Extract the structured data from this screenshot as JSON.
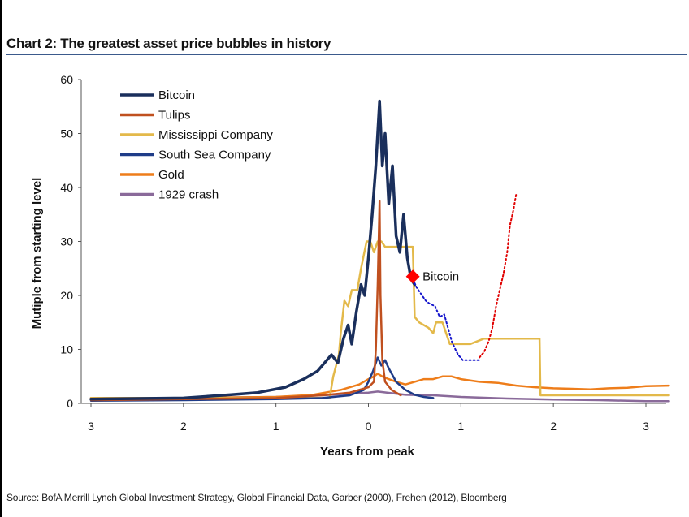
{
  "title": "Chart 2: The greatest asset price bubbles in history",
  "source": "Source:  BofA Merrill Lynch Global Investment Strategy, Global Financial Data, Garber (2000), Frehen (2012),  Bloomberg",
  "chart_data": {
    "type": "line",
    "title": "Chart 2: The greatest asset price bubbles in history",
    "xlabel": "Years from peak",
    "ylabel": "Mutiple from starting level",
    "xlim": [
      -3.0,
      3.25
    ],
    "ylim": [
      0,
      60
    ],
    "x_ticks": [
      -3,
      -2,
      -1,
      0,
      1,
      2,
      3
    ],
    "x_tick_labels": [
      "3",
      "2",
      "1",
      "0",
      "1",
      "2",
      "3"
    ],
    "y_ticks": [
      0,
      10,
      20,
      30,
      40,
      50,
      60
    ],
    "y_tick_labels": [
      "0",
      "10",
      "20",
      "30",
      "40",
      "50",
      "60"
    ],
    "annotation": {
      "text": "Bitcoin",
      "x": 0.48,
      "y": 23.5,
      "color": "#ff0000"
    },
    "series": [
      {
        "name": "Bitcoin",
        "color": "#1a2f5c",
        "width": 3.5,
        "points": [
          [
            -3.0,
            0.8
          ],
          [
            -2.5,
            0.9
          ],
          [
            -2.0,
            1.0
          ],
          [
            -1.5,
            1.6
          ],
          [
            -1.2,
            2.0
          ],
          [
            -0.9,
            3.0
          ],
          [
            -0.7,
            4.5
          ],
          [
            -0.55,
            6.0
          ],
          [
            -0.4,
            9.0
          ],
          [
            -0.33,
            7.5
          ],
          [
            -0.27,
            12.0
          ],
          [
            -0.22,
            14.5
          ],
          [
            -0.18,
            11.0
          ],
          [
            -0.13,
            17.0
          ],
          [
            -0.08,
            22.0
          ],
          [
            -0.04,
            20.0
          ],
          [
            0.0,
            27.0
          ],
          [
            0.04,
            35.0
          ],
          [
            0.08,
            44.0
          ],
          [
            0.12,
            56.0
          ],
          [
            0.15,
            44.0
          ],
          [
            0.18,
            50.0
          ],
          [
            0.22,
            37.0
          ],
          [
            0.26,
            44.0
          ],
          [
            0.3,
            31.0
          ],
          [
            0.34,
            28.0
          ],
          [
            0.38,
            35.0
          ],
          [
            0.42,
            27.0
          ],
          [
            0.46,
            23.0
          ],
          [
            0.5,
            22.0
          ]
        ]
      },
      {
        "name": "Tulips",
        "color": "#c0501f",
        "width": 2.5,
        "points": [
          [
            -3.0,
            0.6
          ],
          [
            -2.0,
            0.8
          ],
          [
            -1.0,
            1.0
          ],
          [
            -0.5,
            1.5
          ],
          [
            -0.2,
            2.0
          ],
          [
            0.0,
            3.0
          ],
          [
            0.06,
            4.0
          ],
          [
            0.08,
            10.0
          ],
          [
            0.1,
            22.0
          ],
          [
            0.12,
            37.5
          ],
          [
            0.13,
            20.0
          ],
          [
            0.15,
            8.0
          ],
          [
            0.18,
            4.0
          ],
          [
            0.25,
            2.5
          ],
          [
            0.35,
            1.5
          ]
        ]
      },
      {
        "name": "Mississippi Company",
        "color": "#e3b94a",
        "width": 2.5,
        "points": [
          [
            -3.0,
            1.0
          ],
          [
            -2.0,
            1.0
          ],
          [
            -1.0,
            1.0
          ],
          [
            -0.5,
            1.0
          ],
          [
            -0.42,
            1.0
          ],
          [
            -0.38,
            5.0
          ],
          [
            -0.32,
            9.0
          ],
          [
            -0.3,
            13.0
          ],
          [
            -0.26,
            19.0
          ],
          [
            -0.22,
            18.0
          ],
          [
            -0.18,
            21.0
          ],
          [
            -0.12,
            21.0
          ],
          [
            -0.08,
            25.0
          ],
          [
            -0.02,
            30.0
          ],
          [
            0.02,
            30.0
          ],
          [
            0.06,
            28.0
          ],
          [
            0.1,
            30.0
          ],
          [
            0.14,
            30.0
          ],
          [
            0.18,
            29.0
          ],
          [
            0.26,
            29.0
          ],
          [
            0.4,
            29.0
          ],
          [
            0.48,
            29.0
          ],
          [
            0.5,
            16.0
          ],
          [
            0.55,
            15.0
          ],
          [
            0.65,
            14.0
          ],
          [
            0.7,
            13.0
          ],
          [
            0.73,
            15.0
          ],
          [
            0.8,
            15.0
          ],
          [
            0.88,
            11.0
          ],
          [
            1.0,
            11.0
          ],
          [
            1.1,
            11.0
          ],
          [
            1.25,
            12.0
          ],
          [
            1.5,
            12.0
          ],
          [
            1.7,
            12.0
          ],
          [
            1.85,
            12.0
          ],
          [
            1.86,
            1.5
          ],
          [
            2.2,
            1.5
          ],
          [
            2.8,
            1.5
          ],
          [
            3.25,
            1.5
          ]
        ]
      },
      {
        "name": "South Sea Company",
        "color": "#1f3c88",
        "width": 2.5,
        "points": [
          [
            -3.0,
            0.5
          ],
          [
            -2.0,
            0.6
          ],
          [
            -1.0,
            0.8
          ],
          [
            -0.5,
            1.0
          ],
          [
            -0.2,
            1.5
          ],
          [
            -0.05,
            2.5
          ],
          [
            0.0,
            4.0
          ],
          [
            0.05,
            6.0
          ],
          [
            0.1,
            8.5
          ],
          [
            0.14,
            7.0
          ],
          [
            0.18,
            8.0
          ],
          [
            0.22,
            6.5
          ],
          [
            0.3,
            4.0
          ],
          [
            0.4,
            2.5
          ],
          [
            0.5,
            1.6
          ],
          [
            0.6,
            1.2
          ],
          [
            0.7,
            1.0
          ]
        ]
      },
      {
        "name": "Gold",
        "color": "#ee7d1a",
        "width": 2.5,
        "points": [
          [
            -3.0,
            1.0
          ],
          [
            -2.0,
            1.0
          ],
          [
            -1.0,
            1.2
          ],
          [
            -0.6,
            1.6
          ],
          [
            -0.3,
            2.5
          ],
          [
            -0.1,
            3.5
          ],
          [
            0.0,
            4.5
          ],
          [
            0.06,
            5.0
          ],
          [
            0.1,
            5.5
          ],
          [
            0.15,
            5.0
          ],
          [
            0.22,
            4.5
          ],
          [
            0.3,
            4.0
          ],
          [
            0.4,
            3.5
          ],
          [
            0.5,
            4.0
          ],
          [
            0.6,
            4.5
          ],
          [
            0.7,
            4.5
          ],
          [
            0.8,
            5.0
          ],
          [
            0.9,
            5.0
          ],
          [
            1.0,
            4.5
          ],
          [
            1.2,
            4.0
          ],
          [
            1.4,
            3.8
          ],
          [
            1.6,
            3.3
          ],
          [
            1.8,
            3.0
          ],
          [
            2.0,
            2.8
          ],
          [
            2.2,
            2.7
          ],
          [
            2.4,
            2.6
          ],
          [
            2.6,
            2.8
          ],
          [
            2.8,
            2.9
          ],
          [
            3.0,
            3.2
          ],
          [
            3.25,
            3.3
          ]
        ]
      },
      {
        "name": "1929 crash",
        "color": "#8a6a9a",
        "width": 2.5,
        "points": [
          [
            -3.0,
            1.0
          ],
          [
            -2.0,
            1.0
          ],
          [
            -1.0,
            1.2
          ],
          [
            -0.5,
            1.5
          ],
          [
            -0.2,
            1.8
          ],
          [
            0.0,
            2.0
          ],
          [
            0.1,
            2.2
          ],
          [
            0.2,
            2.0
          ],
          [
            0.4,
            1.6
          ],
          [
            0.7,
            1.5
          ],
          [
            1.0,
            1.2
          ],
          [
            1.5,
            0.9
          ],
          [
            2.0,
            0.7
          ],
          [
            2.5,
            0.6
          ],
          [
            3.0,
            0.4
          ],
          [
            3.25,
            0.4
          ]
        ]
      },
      {
        "name": "Bitcoin (current, blue dotted)",
        "color": "#1515cc",
        "width": 2,
        "points": [
          [
            0.48,
            23.0
          ],
          [
            0.52,
            21.5
          ],
          [
            0.58,
            20.0
          ],
          [
            0.62,
            19.0
          ],
          [
            0.66,
            18.5
          ],
          [
            0.72,
            18.0
          ],
          [
            0.77,
            16.0
          ],
          [
            0.82,
            16.5
          ],
          [
            0.86,
            14.0
          ],
          [
            0.9,
            11.5
          ],
          [
            0.94,
            10.0
          ],
          [
            0.97,
            9.0
          ],
          [
            1.02,
            8.0
          ],
          [
            1.08,
            8.0
          ],
          [
            1.15,
            8.0
          ],
          [
            1.2,
            8.0
          ]
        ]
      },
      {
        "name": "Bitcoin (recovery, red dotted)",
        "color": "#e00000",
        "width": 2,
        "points": [
          [
            1.2,
            8.5
          ],
          [
            1.25,
            9.5
          ],
          [
            1.3,
            11.5
          ],
          [
            1.34,
            14.0
          ],
          [
            1.38,
            18.0
          ],
          [
            1.42,
            21.0
          ],
          [
            1.46,
            24.0
          ],
          [
            1.5,
            28.0
          ],
          [
            1.53,
            33.0
          ],
          [
            1.57,
            36.0
          ],
          [
            1.6,
            39.0
          ]
        ]
      }
    ],
    "legend": [
      "Bitcoin",
      "Tulips",
      "Mississippi Company",
      "South Sea Company",
      "Gold",
      "1929 crash"
    ],
    "legend_placement": "top-left"
  }
}
